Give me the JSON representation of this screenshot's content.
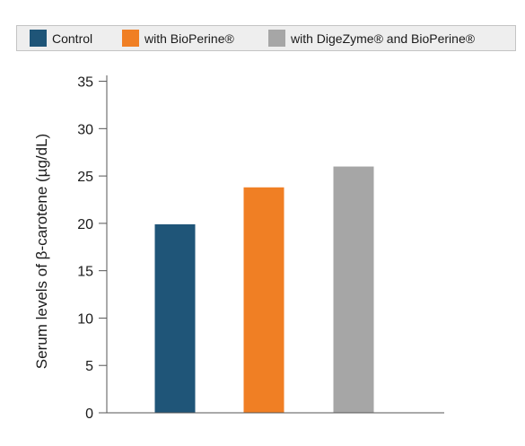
{
  "chart_data": {
    "type": "bar",
    "categories": [
      "Control",
      "with BioPerine®",
      "with DigeZyme® and BioPerine®"
    ],
    "values": [
      19.9,
      23.8,
      26.0
    ],
    "colors": [
      "#1f5578",
      "#f07f24",
      "#a6a6a6"
    ],
    "title": "",
    "xlabel": "",
    "ylabel": "Serum levels of β-carotene (µg/dL)",
    "ylim": [
      0,
      36
    ],
    "yticks": [
      0,
      5,
      10,
      15,
      20,
      25,
      30,
      35
    ],
    "grid": false,
    "legend": {
      "placement": "top",
      "entries": [
        {
          "label": "Control",
          "color": "#1f5578"
        },
        {
          "label": "with BioPerine®",
          "color": "#f07f24"
        },
        {
          "label": "with DigeZyme® and BioPerine®",
          "color": "#a6a6a6"
        }
      ]
    }
  }
}
